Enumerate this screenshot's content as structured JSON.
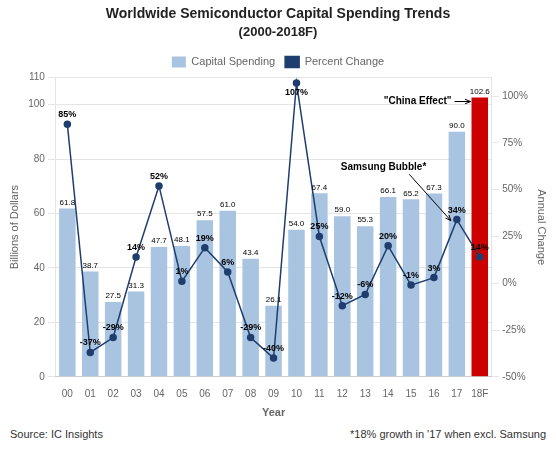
{
  "chart_data": {
    "type": "bar",
    "title": "Worldwide Semiconductor Capital Spending Trends",
    "subtitle": "(2000-2018F)",
    "xlabel": "Year",
    "ylabel": "Billions of Dollars",
    "y2label": "Annual Change",
    "categories": [
      "00",
      "01",
      "02",
      "03",
      "04",
      "05",
      "06",
      "07",
      "08",
      "09",
      "10",
      "11",
      "12",
      "13",
      "14",
      "15",
      "16",
      "17",
      "18F"
    ],
    "series": [
      {
        "name": "Capital Spending",
        "type": "bar",
        "color": "#a8c4e0",
        "colors": [
          "#a8c4e0",
          "#a8c4e0",
          "#a8c4e0",
          "#a8c4e0",
          "#a8c4e0",
          "#a8c4e0",
          "#a8c4e0",
          "#a8c4e0",
          "#a8c4e0",
          "#a8c4e0",
          "#a8c4e0",
          "#a8c4e0",
          "#a8c4e0",
          "#a8c4e0",
          "#a8c4e0",
          "#a8c4e0",
          "#a8c4e0",
          "#a8c4e0",
          "#cc0000"
        ],
        "values": [
          61.8,
          38.7,
          27.5,
          31.3,
          47.7,
          48.1,
          57.5,
          61.0,
          43.4,
          26.1,
          54.0,
          67.4,
          59.0,
          55.3,
          66.1,
          65.2,
          67.3,
          90.0,
          102.6
        ],
        "value_labels": [
          "61.8",
          "38.7",
          "27.5",
          "31.3",
          "47.7",
          "48.1",
          "57.5",
          "61.0",
          "43.4",
          "26.1",
          "54.0",
          "67.4",
          "59.0",
          "55.3",
          "66.1",
          "65.2",
          "67.3",
          "90.0",
          "102.6"
        ]
      },
      {
        "name": "Percent Change",
        "type": "line",
        "axis": "y2",
        "color": "#1f3e6e",
        "marker": "circle",
        "values": [
          85,
          -37,
          -29,
          14,
          52,
          1,
          19,
          6,
          -29,
          -40,
          107,
          25,
          -12,
          -6,
          20,
          -1,
          3,
          34,
          14
        ],
        "value_labels": [
          "85%",
          "-37%",
          "-29%",
          "14%",
          "52%",
          "1%",
          "19%",
          "6%",
          "-29%",
          "-40%",
          "107%",
          "25%",
          "-12%",
          "-6%",
          "20%",
          "-1%",
          "3%",
          "34%",
          "14%"
        ]
      }
    ],
    "ylim": [
      0,
      110
    ],
    "yticks": [
      0,
      20,
      40,
      60,
      80,
      100,
      110
    ],
    "y2lim": [
      -50,
      110
    ],
    "y2ticks": [
      {
        "value": -50,
        "label": "-50%"
      },
      {
        "value": -25,
        "label": "-25%"
      },
      {
        "value": 0,
        "label": "0%"
      },
      {
        "value": 25,
        "label": "25%"
      },
      {
        "value": 50,
        "label": "50%"
      },
      {
        "value": 75,
        "label": "75%"
      },
      {
        "value": 100,
        "label": "100%"
      }
    ],
    "grid": true,
    "legend": "top",
    "data_labels": true,
    "annotations": [
      {
        "text": "\"China Effect\"",
        "category": "18F",
        "series": "Capital Spending"
      },
      {
        "text": "Samsung Bubble*",
        "category": "17",
        "series": "Percent Change"
      }
    ],
    "source": "Source: IC Insights",
    "note": "*18% growth in '17 when excl. Samsung"
  }
}
